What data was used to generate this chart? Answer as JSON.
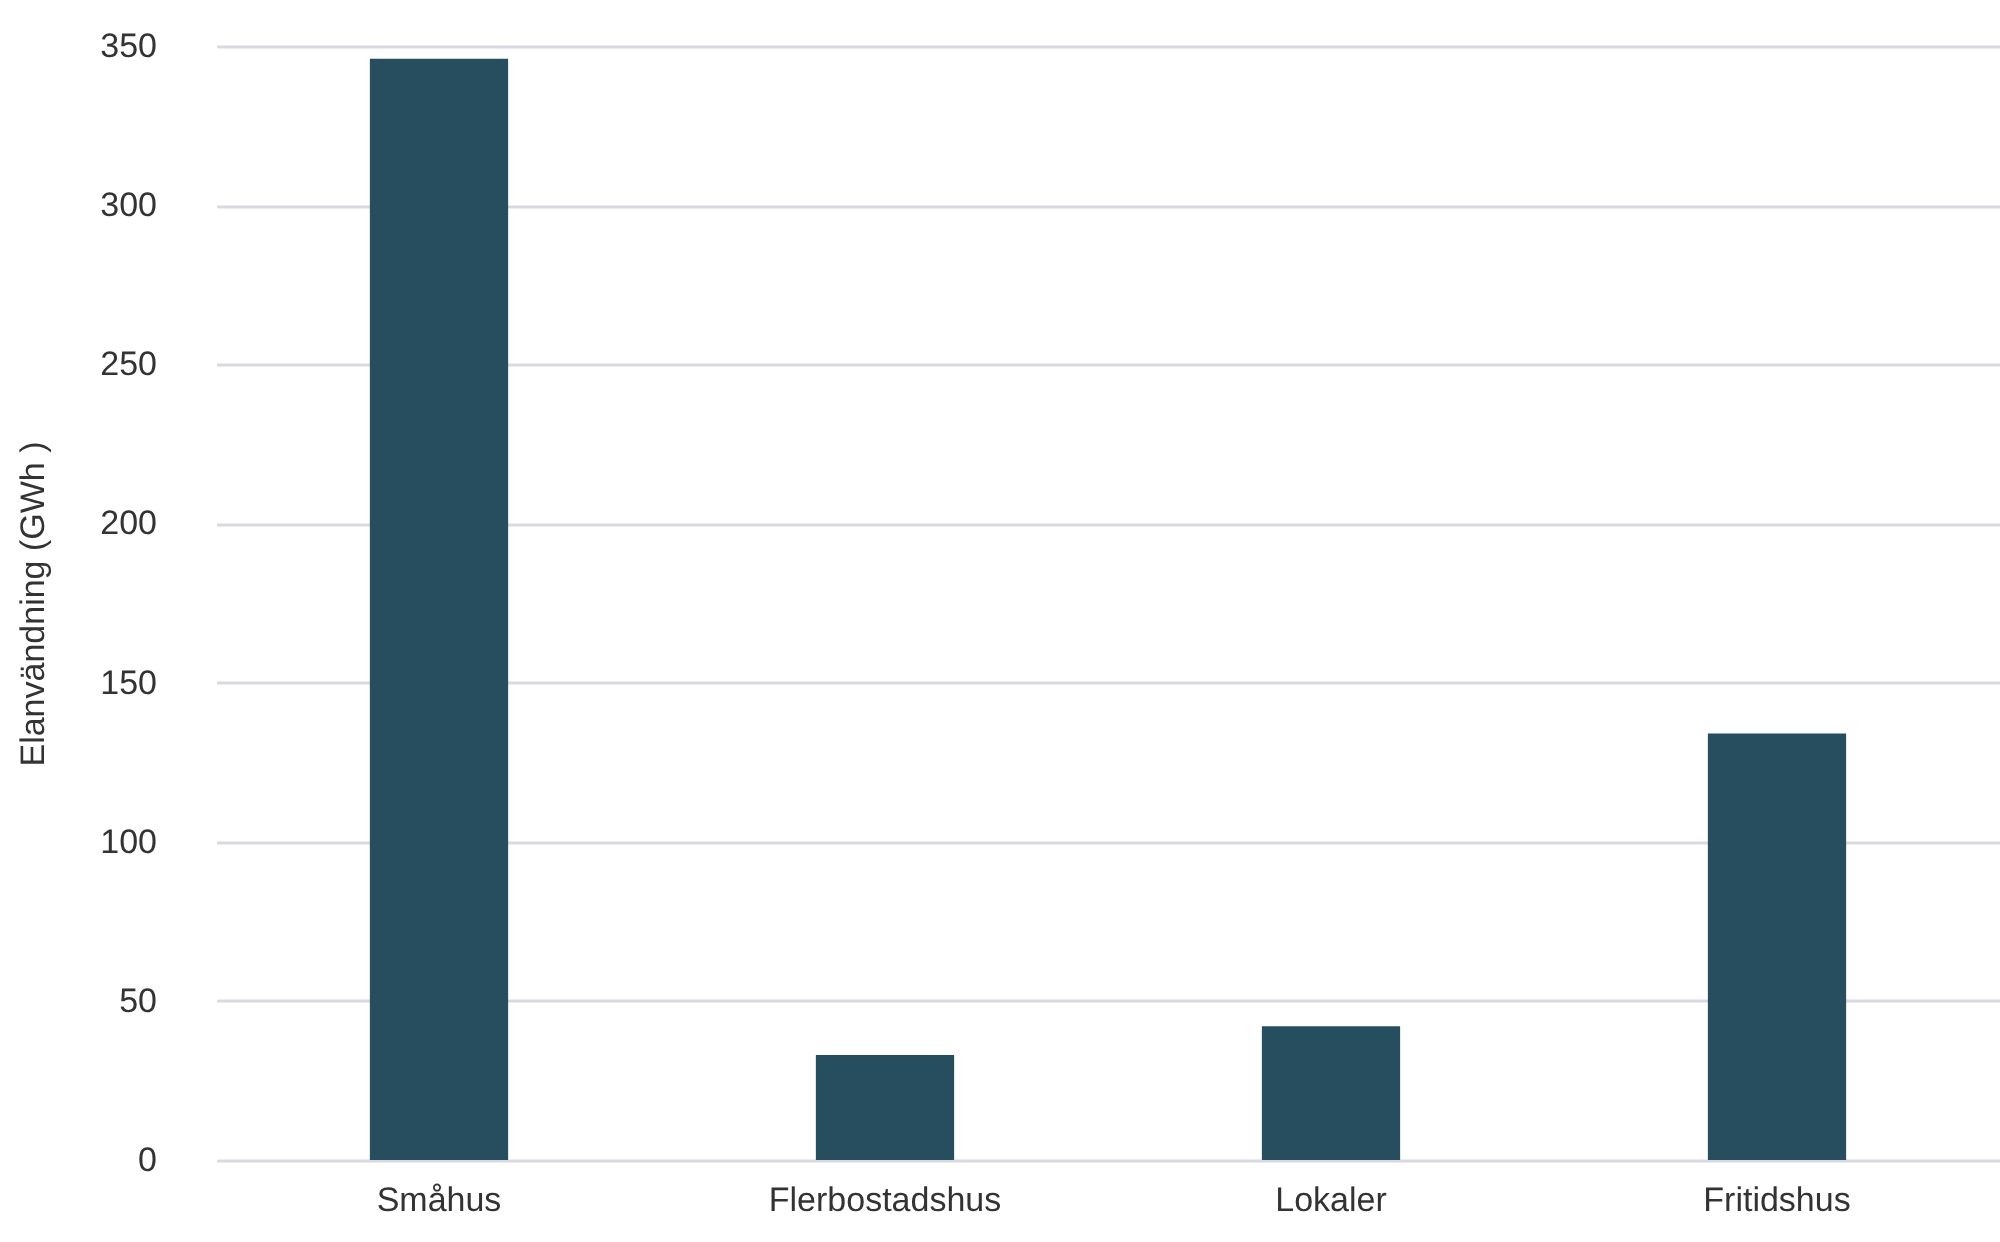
{
  "chart_data": {
    "type": "bar",
    "ylabel": "Elanvändning (GWh )",
    "categories": [
      "Småhus",
      "Flerbostadshus",
      "Lokaler",
      "Fritidshus"
    ],
    "values": [
      346,
      33,
      42,
      134
    ],
    "color": "#264e5e",
    "ylim": [
      0,
      350
    ],
    "yticks": [
      0,
      50,
      100,
      150,
      200,
      250,
      300,
      350
    ],
    "grid": "y"
  }
}
